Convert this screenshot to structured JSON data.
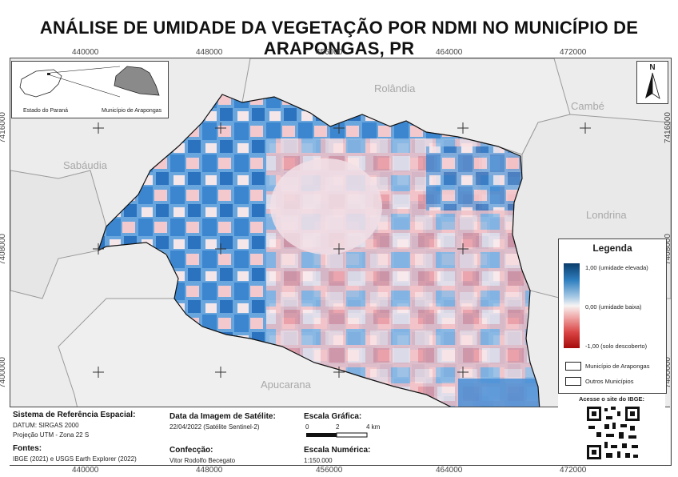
{
  "title": "ANÁLISE DE UMIDADE DA VEGETAÇÃO POR NDMI NO MUNICÍPIO DE ARAPONGAS, PR",
  "coords": {
    "top": [
      "440000",
      "448000",
      "456000",
      "464000",
      "472000"
    ],
    "bottom": [
      "440000",
      "448000",
      "456000",
      "464000",
      "472000"
    ],
    "left": [
      "7416000",
      "7408000",
      "7400000"
    ],
    "right": [
      "7416000",
      "7408000",
      "7400000"
    ]
  },
  "cities": {
    "rolandia": "Rolândia",
    "cambe": "Cambé",
    "sabaudia": "Sabáudia",
    "londrina": "Londrina",
    "apucarana": "Apucarana"
  },
  "inset": {
    "state_label": "Estado do Paraná",
    "municipality_label": "Município de Arapongas"
  },
  "north": {
    "letter": "N"
  },
  "legend": {
    "title": "Legenda",
    "high": "1,00 (umidade elevada)",
    "mid": "0,00 (umidade baixa)",
    "low": "-1,00 (solo descoberto)",
    "municipio": "Município de Arapongas",
    "outros": "Outros Municípios"
  },
  "info": {
    "srs_title": "Sistema de Referência Espacial:",
    "datum": "DATUM: SIRGAS 2000",
    "projection": "Projeção UTM - Zona 22 S",
    "sources_title": "Fontes:",
    "sources": "IBGE (2021) e USGS Earth Explorer (2022)",
    "date_title": "Data da Imagem de Satélite:",
    "date": "22/04/2022 (Satélite Sentinel-2)",
    "author_title": "Confecção:",
    "author": "Vitor Rodolfo Becegato",
    "scale_title": "Escala Gráfica:",
    "scale_ticks": [
      "0",
      "2",
      "4 km"
    ],
    "num_scale_title": "Escala Numérica:",
    "num_scale": "1:150.000"
  },
  "qr": {
    "title": "Acesse o site do IBGE:"
  }
}
